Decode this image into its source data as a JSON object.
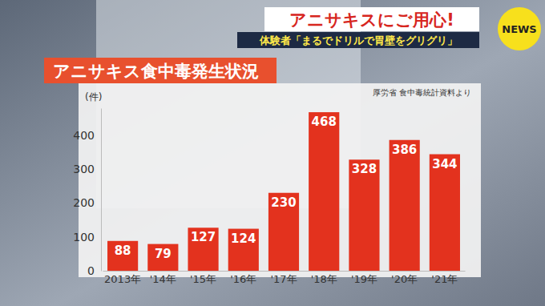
{
  "header": {
    "headline": "アニサキスにご用心!",
    "subheadline": "体験者「まるでドリルで胃壁をグリグリ」",
    "logo": "NEWS"
  },
  "chart_data": {
    "type": "bar",
    "title": "アニサキス食中毒発生状況",
    "annotations": [
      "厚労省 食中毒統計資料より"
    ],
    "ylabel": "(件)",
    "categories": [
      "2013年",
      "'14年",
      "'15年",
      "'16年",
      "'17年",
      "'18年",
      "'19年",
      "'20年",
      "'21年"
    ],
    "values": [
      88,
      79,
      127,
      124,
      230,
      468,
      328,
      386,
      344
    ],
    "color": "#e3321e",
    "ylim": [
      0,
      480
    ],
    "yticks": [
      0,
      100,
      200,
      300,
      400
    ],
    "grid": false,
    "data_labels": true
  }
}
